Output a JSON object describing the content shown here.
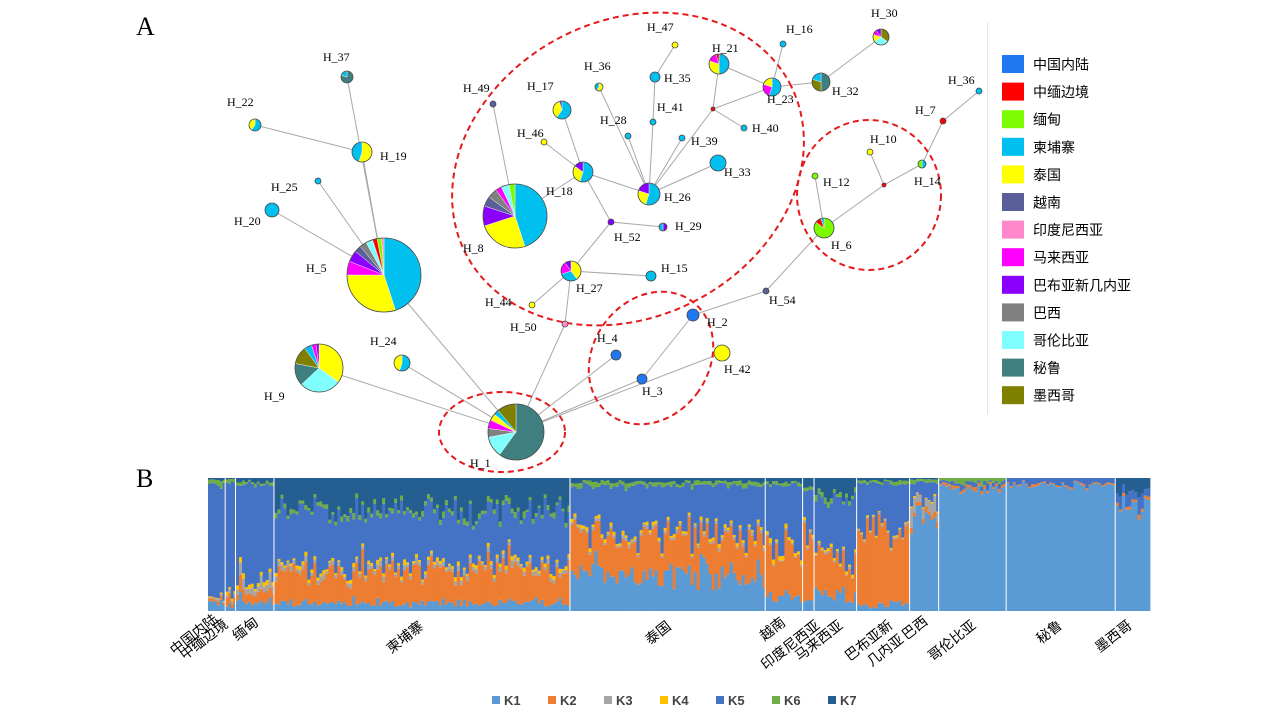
{
  "panels": {
    "a": "A",
    "b": "B"
  },
  "colors": {
    "中国内陆": "#1f78f0",
    "中缅边境": "#ff0000",
    "缅甸": "#7cfc00",
    "柬埔寨": "#00c0f0",
    "泰国": "#ffff00",
    "越南": "#5a5f9a",
    "印度尼西亚": "#ff88cc",
    "马来西亚": "#ff00ff",
    "巴布亚新几内亚": "#8a00ff",
    "巴西": "#808080",
    "哥伦比亚": "#80ffff",
    "秘鲁": "#3f7f7f",
    "墨西哥": "#808000"
  },
  "legend": [
    "中国内陆",
    "中缅边境",
    "缅甸",
    "柬埔寨",
    "泰国",
    "越南",
    "印度尼西亚",
    "马来西亚",
    "巴布亚新几内亚",
    "巴西",
    "哥伦比亚",
    "秘鲁",
    "墨西哥"
  ],
  "chart_data": [
    {
      "type": "network",
      "nodes": [
        {
          "id": "H_1",
          "freq": {
            "秘鲁": 60,
            "哥伦比亚": 12,
            "巴西": 5,
            "马来西亚": 5,
            "泰国": 4,
            "柬埔寨": 3,
            "墨西哥": 11
          }
        },
        {
          "id": "H_2",
          "freq": {
            "中国内陆": 1
          }
        },
        {
          "id": "H_3",
          "freq": {
            "中国内陆": 1
          }
        },
        {
          "id": "H_4",
          "freq": {
            "中国内陆": 1
          }
        },
        {
          "id": "H_5",
          "freq": {
            "柬埔寨": 45,
            "泰国": 30,
            "马来西亚": 6,
            "巴布亚新几内亚": 5,
            "越南": 3,
            "巴西": 3,
            "哥伦比亚": 3,
            "中缅边境": 2,
            "缅甸": 2,
            "印度尼西亚": 1
          }
        },
        {
          "id": "H_6",
          "freq": {
            "缅甸": 85,
            "中缅边境": 10,
            "柬埔寨": 5
          }
        },
        {
          "id": "H_7",
          "freq": {
            "中缅边境": 1
          }
        },
        {
          "id": "H_8",
          "freq": {
            "柬埔寨": 45,
            "泰国": 25,
            "巴布亚新几内亚": 10,
            "越南": 5,
            "巴西": 5,
            "马来西亚": 3,
            "哥伦比亚": 4,
            "缅甸": 3
          }
        },
        {
          "id": "H_9",
          "freq": {
            "泰国": 35,
            "哥伦比亚": 28,
            "秘鲁": 15,
            "墨西哥": 12,
            "柬埔寨": 5,
            "马来西亚": 3,
            "巴布亚新几内亚": 2
          }
        },
        {
          "id": "H_10",
          "freq": {
            "泰国": 1
          }
        },
        {
          "id": "H_12",
          "freq": {
            "缅甸": 1
          }
        },
        {
          "id": "H_14",
          "freq": {
            "柬埔寨": 50,
            "缅甸": 50
          }
        },
        {
          "id": "H_15",
          "freq": {
            "柬埔寨": 1
          }
        },
        {
          "id": "H_16",
          "freq": {
            "柬埔寨": 1
          }
        },
        {
          "id": "H_17",
          "freq": {
            "柬埔寨": 60,
            "泰国": 35,
            "越南": 5
          }
        },
        {
          "id": "H_18",
          "freq": {
            "柬埔寨": 55,
            "泰国": 30,
            "巴布亚新几内亚": 15
          }
        },
        {
          "id": "H_19",
          "freq": {
            "泰国": 55,
            "柬埔寨": 45
          }
        },
        {
          "id": "H_20",
          "freq": {
            "柬埔寨": 1
          }
        },
        {
          "id": "H_21",
          "freq": {
            "柬埔寨": 50,
            "泰国": 30,
            "马来西亚": 15,
            "中缅边境": 5
          }
        },
        {
          "id": "H_22",
          "freq": {
            "柬埔寨": 60,
            "泰国": 40
          }
        },
        {
          "id": "H_23",
          "freq": {
            "柬埔寨": 55,
            "马来西亚": 25,
            "泰国": 20
          }
        },
        {
          "id": "H_24",
          "freq": {
            "柬埔寨": 55,
            "泰国": 45
          }
        },
        {
          "id": "H_25",
          "freq": {
            "柬埔寨": 1
          }
        },
        {
          "id": "H_26",
          "freq": {
            "柬埔寨": 55,
            "泰国": 25,
            "巴布亚新几内亚": 20
          }
        },
        {
          "id": "H_27",
          "freq": {
            "泰国": 40,
            "柬埔寨": 30,
            "马来西亚": 20,
            "巴布亚新几内亚": 10
          }
        },
        {
          "id": "H_28",
          "freq": {
            "柬埔寨": 1
          }
        },
        {
          "id": "H_29",
          "freq": {
            "巴布亚新几内亚": 50,
            "柬埔寨": 50
          }
        },
        {
          "id": "H_30",
          "freq": {
            "墨西哥": 35,
            "哥伦比亚": 30,
            "泰国": 15,
            "马来西亚": 10,
            "巴布亚新几内亚": 10
          }
        },
        {
          "id": "H_32",
          "freq": {
            "秘鲁": 50,
            "墨西哥": 30,
            "柬埔寨": 20
          }
        },
        {
          "id": "H_33",
          "freq": {
            "柬埔寨": 1
          }
        },
        {
          "id": "H_35",
          "freq": {
            "柬埔寨": 1
          }
        },
        {
          "id": "H_36",
          "freq": {
            "泰国": 60,
            "柬埔寨": 40
          }
        },
        {
          "id": "H_37",
          "freq": {
            "秘鲁": 80,
            "柬埔寨": 20
          }
        },
        {
          "id": "H_39",
          "freq": {
            "柬埔寨": 1
          }
        },
        {
          "id": "H_40",
          "freq": {
            "柬埔寨": 1
          }
        },
        {
          "id": "H_41",
          "freq": {
            "柬埔寨": 1
          }
        },
        {
          "id": "H_42",
          "freq": {
            "泰国": 1
          }
        },
        {
          "id": "H_44",
          "freq": {
            "泰国": 1
          }
        },
        {
          "id": "H_46",
          "freq": {
            "泰国": 1
          }
        },
        {
          "id": "H_47",
          "freq": {
            "泰国": 1
          }
        },
        {
          "id": "H_49",
          "freq": {
            "越南": 1
          }
        },
        {
          "id": "H_50",
          "freq": {
            "印度尼西亚": 1
          }
        },
        {
          "id": "H_52",
          "freq": {
            "巴布亚新几内亚": 1
          }
        },
        {
          "id": "H_54",
          "freq": {
            "越南": 1
          }
        },
        {
          "id": "H_36b",
          "label": "H_36",
          "freq": {
            "柬埔寨": 1
          }
        }
      ],
      "median_vectors": [
        {
          "id": "mv_1",
          "freq": {
            "中缅边境": 1
          }
        },
        {
          "id": "mv_2",
          "freq": {
            "中缅边境": 1
          }
        }
      ]
    },
    {
      "type": "bar",
      "title": "",
      "stacked": true,
      "categories": [
        "中国内陆",
        "中缅边境",
        "缅甸",
        "柬埔寨",
        "泰国",
        "越南",
        "印度尼西亚",
        "马来西亚",
        "巴布亚新几内亚",
        "巴西",
        "哥伦比亚",
        "秘鲁",
        "墨西哥"
      ],
      "legend": [
        "K1",
        "K2",
        "K3",
        "K4",
        "K5",
        "K6",
        "K7"
      ],
      "legend_colors": [
        "#5b9bd5",
        "#ed7d31",
        "#a5a5a5",
        "#ffc000",
        "#4472c4",
        "#70ad47",
        "#255e91"
      ],
      "series": [
        {
          "name": "K1",
          "values": [
            0.07,
            0.05,
            0.08,
            0.06,
            0.28,
            0.1,
            0.08,
            0.12,
            0.05,
            0.72,
            0.92,
            0.95,
            0.8
          ]
        },
        {
          "name": "K2",
          "values": [
            0.02,
            0.05,
            0.08,
            0.24,
            0.28,
            0.4,
            0.48,
            0.25,
            0.55,
            0.03,
            0.02,
            0.01,
            0.02
          ]
        },
        {
          "name": "K3",
          "values": [
            0.01,
            0.02,
            0.06,
            0.03,
            0.02,
            0.01,
            0.02,
            0.01,
            0.01,
            0.08,
            0.0,
            0.0,
            0.0
          ]
        },
        {
          "name": "K4",
          "values": [
            0.01,
            0.02,
            0.03,
            0.02,
            0.02,
            0.03,
            0.02,
            0.02,
            0.01,
            0.01,
            0.0,
            0.0,
            0.0
          ]
        },
        {
          "name": "K5",
          "values": [
            0.84,
            0.82,
            0.7,
            0.4,
            0.34,
            0.4,
            0.32,
            0.45,
            0.34,
            0.13,
            0.03,
            0.04,
            0.08
          ]
        },
        {
          "name": "K6",
          "values": [
            0.03,
            0.03,
            0.02,
            0.03,
            0.03,
            0.02,
            0.02,
            0.03,
            0.02,
            0.02,
            0.03,
            0.0,
            0.0
          ]
        },
        {
          "name": "K7",
          "values": [
            0.02,
            0.01,
            0.03,
            0.22,
            0.03,
            0.04,
            0.06,
            0.12,
            0.02,
            0.01,
            0.0,
            0.0,
            0.1
          ]
        }
      ]
    }
  ]
}
